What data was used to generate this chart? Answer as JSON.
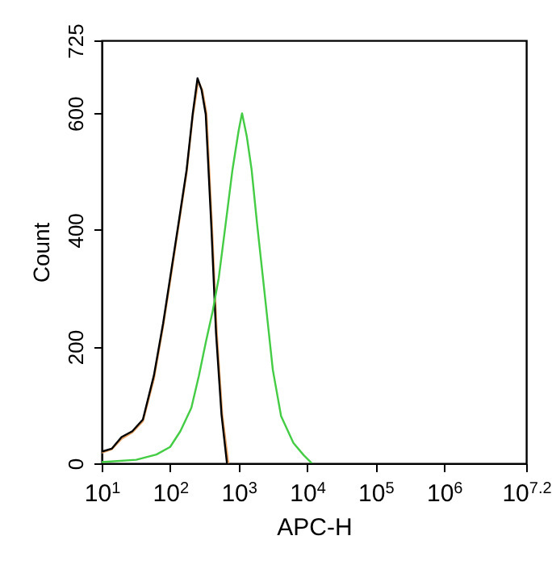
{
  "chart_data": {
    "type": "line",
    "xlabel": "APC-H",
    "ylabel": "Count",
    "log": "x",
    "xlim": [
      10,
      15848932
    ],
    "ylim": [
      0,
      725
    ],
    "xticks": [
      {
        "value": 10,
        "label": "10$^{1}$"
      },
      {
        "value": 100,
        "label": "10$^{2}$"
      },
      {
        "value": 1000,
        "label": "10$^{3}$"
      },
      {
        "value": 10000,
        "label": "10$^{4}$"
      },
      {
        "value": 100000,
        "label": "10$^{5}$"
      },
      {
        "value": 1000000,
        "label": "10$^{6}$"
      },
      {
        "value": 15848932,
        "label": "10$^{7.2}$"
      }
    ],
    "yticks": [
      0,
      200,
      400,
      600,
      725
    ],
    "series": [
      {
        "color": "#e8a466",
        "x": [
          10,
          14,
          19.5,
          28,
          40,
          58,
          79,
          100,
          132,
          174,
          214,
          257,
          295,
          339,
          407,
          479,
          575,
          708
        ],
        "values": [
          18,
          24,
          42,
          53,
          72,
          145,
          235,
          312,
          405,
          498,
          595,
          655,
          640,
          600,
          410,
          225,
          85,
          0
        ]
      },
      {
        "color": "#000000",
        "x": [
          10,
          14,
          19.5,
          28,
          40,
          58,
          79,
          100,
          132,
          174,
          214,
          251,
          288,
          331,
          398,
          468,
          562,
          676
        ],
        "values": [
          20,
          25,
          45,
          55,
          75,
          151,
          240,
          318,
          410,
          503,
          600,
          660,
          640,
          598,
          410,
          223,
          84,
          0
        ]
      },
      {
        "color": "#44cc44",
        "x": [
          10,
          32,
          63,
          100,
          141,
          204,
          263,
          331,
          417,
          513,
          646,
          813,
          1000,
          1122,
          1318,
          1549,
          1862,
          2291,
          3162,
          4169,
          6310,
          8913,
          11749
        ],
        "values": [
          2,
          6,
          15,
          28,
          55,
          95,
          150,
          207,
          260,
          318,
          410,
          503,
          570,
          600,
          560,
          503,
          410,
          313,
          160,
          81,
          35,
          14,
          0
        ]
      }
    ]
  }
}
